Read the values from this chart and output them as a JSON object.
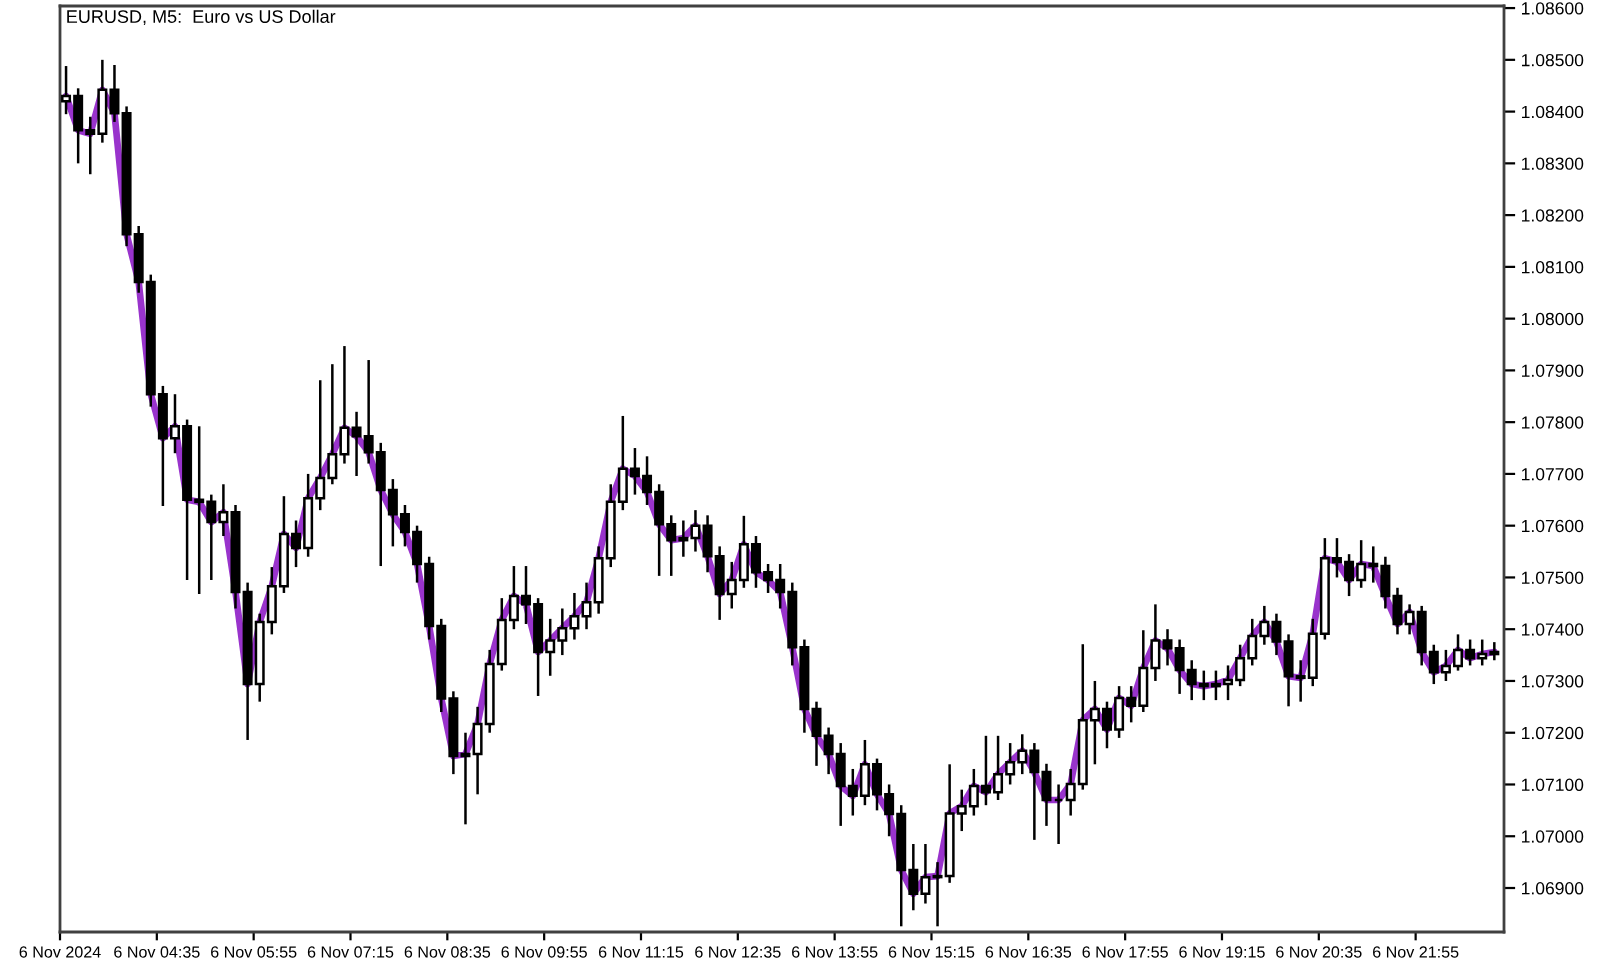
{
  "chart_data": {
    "type": "candlestick",
    "title": "EURUSD, M5:  Euro vs US Dollar",
    "x": [
      "2024-11-06T03:20",
      "2024-11-06T03:30",
      "2024-11-06T03:40",
      "2024-11-06T03:50",
      "2024-11-06T04:00",
      "2024-11-06T04:10",
      "2024-11-06T04:20",
      "2024-11-06T04:30",
      "2024-11-06T04:40",
      "2024-11-06T04:50",
      "2024-11-06T05:00",
      "2024-11-06T05:10",
      "2024-11-06T05:20",
      "2024-11-06T05:30",
      "2024-11-06T05:40",
      "2024-11-06T05:50",
      "2024-11-06T06:00",
      "2024-11-06T06:10",
      "2024-11-06T06:20",
      "2024-11-06T06:30",
      "2024-11-06T06:40",
      "2024-11-06T06:50",
      "2024-11-06T07:00",
      "2024-11-06T07:10",
      "2024-11-06T07:20",
      "2024-11-06T07:30",
      "2024-11-06T07:40",
      "2024-11-06T07:50",
      "2024-11-06T08:00",
      "2024-11-06T08:10",
      "2024-11-06T08:20",
      "2024-11-06T08:30",
      "2024-11-06T08:40",
      "2024-11-06T08:50",
      "2024-11-06T09:00",
      "2024-11-06T09:10",
      "2024-11-06T09:20",
      "2024-11-06T09:30",
      "2024-11-06T09:40",
      "2024-11-06T09:50",
      "2024-11-06T10:00",
      "2024-11-06T10:10",
      "2024-11-06T10:20",
      "2024-11-06T10:30",
      "2024-11-06T10:40",
      "2024-11-06T10:50",
      "2024-11-06T11:00",
      "2024-11-06T11:10",
      "2024-11-06T11:20",
      "2024-11-06T11:30",
      "2024-11-06T11:40",
      "2024-11-06T11:50",
      "2024-11-06T12:00",
      "2024-11-06T12:10",
      "2024-11-06T12:20",
      "2024-11-06T12:30",
      "2024-11-06T12:40",
      "2024-11-06T12:50",
      "2024-11-06T13:00",
      "2024-11-06T13:10",
      "2024-11-06T13:20",
      "2024-11-06T13:30",
      "2024-11-06T13:40",
      "2024-11-06T13:50",
      "2024-11-06T14:00",
      "2024-11-06T14:10",
      "2024-11-06T14:20",
      "2024-11-06T14:30",
      "2024-11-06T14:40",
      "2024-11-06T14:50",
      "2024-11-06T15:00",
      "2024-11-06T15:10",
      "2024-11-06T15:20",
      "2024-11-06T15:30",
      "2024-11-06T15:40",
      "2024-11-06T15:50",
      "2024-11-06T16:00",
      "2024-11-06T16:10",
      "2024-11-06T16:20",
      "2024-11-06T16:30",
      "2024-11-06T16:40",
      "2024-11-06T16:50",
      "2024-11-06T17:00",
      "2024-11-06T17:10",
      "2024-11-06T17:20",
      "2024-11-06T17:30",
      "2024-11-06T17:40",
      "2024-11-06T17:50",
      "2024-11-06T18:00",
      "2024-11-06T18:10",
      "2024-11-06T18:20",
      "2024-11-06T18:30",
      "2024-11-06T18:40",
      "2024-11-06T18:50",
      "2024-11-06T19:00",
      "2024-11-06T19:10",
      "2024-11-06T19:20",
      "2024-11-06T19:30",
      "2024-11-06T19:40",
      "2024-11-06T19:50",
      "2024-11-06T20:00",
      "2024-11-06T20:10",
      "2024-11-06T20:20",
      "2024-11-06T20:30",
      "2024-11-06T20:40",
      "2024-11-06T20:50",
      "2024-11-06T21:00",
      "2024-11-06T21:10",
      "2024-11-06T21:20",
      "2024-11-06T21:30",
      "2024-11-06T21:40",
      "2024-11-06T21:50",
      "2024-11-06T22:00",
      "2024-11-06T22:10",
      "2024-11-06T22:20",
      "2024-11-06T22:30",
      "2024-11-06T22:40",
      "2024-11-06T22:50",
      "2024-11-06T23:00"
    ],
    "ohlc": [
      [
        1.0842,
        1.08488,
        1.08395,
        1.0843
      ],
      [
        1.0843,
        1.08445,
        1.083,
        1.08364
      ],
      [
        1.08364,
        1.0839,
        1.08279,
        1.08357
      ],
      [
        1.08357,
        1.085,
        1.0834,
        1.08442
      ],
      [
        1.08442,
        1.0849,
        1.0838,
        1.08397
      ],
      [
        1.08397,
        1.0841,
        1.0814,
        1.08163
      ],
      [
        1.08163,
        1.08179,
        1.0805,
        1.08071
      ],
      [
        1.08071,
        1.08085,
        1.0783,
        1.07854
      ],
      [
        1.07854,
        1.0787,
        1.07638,
        1.07769
      ],
      [
        1.07769,
        1.07854,
        1.0774,
        1.07792
      ],
      [
        1.07792,
        1.07805,
        1.07495,
        1.0765
      ],
      [
        1.0765,
        1.07792,
        1.07468,
        1.07646
      ],
      [
        1.07646,
        1.0766,
        1.07495,
        1.07607
      ],
      [
        1.07607,
        1.0768,
        1.0758,
        1.07626
      ],
      [
        1.07626,
        1.0764,
        1.0744,
        1.07472
      ],
      [
        1.07472,
        1.0749,
        1.07186,
        1.07294
      ],
      [
        1.07294,
        1.0743,
        1.0726,
        1.07414
      ],
      [
        1.07414,
        1.0752,
        1.0739,
        1.07483
      ],
      [
        1.07483,
        1.07657,
        1.0747,
        1.07584
      ],
      [
        1.07584,
        1.0761,
        1.0752,
        1.07557
      ],
      [
        1.07557,
        1.077,
        1.0754,
        1.07653
      ],
      [
        1.07653,
        1.07881,
        1.0763,
        1.07692
      ],
      [
        1.07692,
        1.07912,
        1.0768,
        1.07738
      ],
      [
        1.07738,
        1.07947,
        1.0772,
        1.07789
      ],
      [
        1.07789,
        1.0782,
        1.07696,
        1.07773
      ],
      [
        1.07773,
        1.0792,
        1.0772,
        1.07742
      ],
      [
        1.07742,
        1.0776,
        1.07522,
        1.07669
      ],
      [
        1.07669,
        1.0769,
        1.0756,
        1.07622
      ],
      [
        1.07622,
        1.0764,
        1.0756,
        1.07588
      ],
      [
        1.07588,
        1.076,
        1.0749,
        1.07526
      ],
      [
        1.07526,
        1.0754,
        1.0738,
        1.07406
      ],
      [
        1.07406,
        1.0742,
        1.0724,
        1.07266
      ],
      [
        1.07266,
        1.0728,
        1.0712,
        1.07155
      ],
      [
        1.07155,
        1.072,
        1.07023,
        1.07159
      ],
      [
        1.07159,
        1.0725,
        1.07081,
        1.07217
      ],
      [
        1.07217,
        1.0736,
        1.072,
        1.07333
      ],
      [
        1.07333,
        1.0746,
        1.0732,
        1.07418
      ],
      [
        1.07418,
        1.07522,
        1.074,
        1.07464
      ],
      [
        1.07464,
        1.07522,
        1.0741,
        1.07448
      ],
      [
        1.07448,
        1.0746,
        1.07271,
        1.07356
      ],
      [
        1.07356,
        1.0742,
        1.0731,
        1.07378
      ],
      [
        1.07378,
        1.0744,
        1.0735,
        1.07402
      ],
      [
        1.07402,
        1.0747,
        1.0738,
        1.07425
      ],
      [
        1.07425,
        1.0749,
        1.074,
        1.07452
      ],
      [
        1.07452,
        1.0756,
        1.0743,
        1.07537
      ],
      [
        1.07537,
        1.0768,
        1.0752,
        1.07646
      ],
      [
        1.07646,
        1.07812,
        1.0763,
        1.0771
      ],
      [
        1.0771,
        1.0775,
        1.0766,
        1.07696
      ],
      [
        1.07696,
        1.07734,
        1.0764,
        1.07665
      ],
      [
        1.07665,
        1.0768,
        1.07503,
        1.07603
      ],
      [
        1.07603,
        1.0762,
        1.07503,
        1.07572
      ],
      [
        1.07572,
        1.0761,
        1.0754,
        1.07576
      ],
      [
        1.07576,
        1.0763,
        1.0755,
        1.076
      ],
      [
        1.076,
        1.0762,
        1.0751,
        1.07541
      ],
      [
        1.07541,
        1.0756,
        1.07418,
        1.07468
      ],
      [
        1.07468,
        1.0753,
        1.0744,
        1.07495
      ],
      [
        1.07495,
        1.07619,
        1.0748,
        1.07564
      ],
      [
        1.07564,
        1.0758,
        1.0748,
        1.0751
      ],
      [
        1.0751,
        1.07526,
        1.0747,
        1.07495
      ],
      [
        1.07495,
        1.07526,
        1.0744,
        1.07472
      ],
      [
        1.07472,
        1.0749,
        1.0733,
        1.07365
      ],
      [
        1.07365,
        1.0738,
        1.072,
        1.07246
      ],
      [
        1.07246,
        1.0726,
        1.07136,
        1.07194
      ],
      [
        1.07194,
        1.0721,
        1.0712,
        1.07159
      ],
      [
        1.07159,
        1.0718,
        1.0702,
        1.07097
      ],
      [
        1.07097,
        1.0713,
        1.0704,
        1.07078
      ],
      [
        1.07078,
        1.07186,
        1.0706,
        1.07139
      ],
      [
        1.07139,
        1.0715,
        1.0705,
        1.07081
      ],
      [
        1.07081,
        1.071,
        1.07,
        1.07043
      ],
      [
        1.07043,
        1.0706,
        1.06826,
        1.06935
      ],
      [
        1.06935,
        1.06985,
        1.06857,
        1.06889
      ],
      [
        1.06889,
        1.06985,
        1.0687,
        1.06921
      ],
      [
        1.06921,
        1.0695,
        1.06826,
        1.06923
      ],
      [
        1.06923,
        1.07139,
        1.0691,
        1.07044
      ],
      [
        1.07044,
        1.0709,
        1.0701,
        1.07058
      ],
      [
        1.07058,
        1.0713,
        1.0704,
        1.07097
      ],
      [
        1.07097,
        1.07194,
        1.0706,
        1.07085
      ],
      [
        1.07085,
        1.07194,
        1.0707,
        1.0712
      ],
      [
        1.0712,
        1.0718,
        1.071,
        1.07143
      ],
      [
        1.07143,
        1.07197,
        1.0712,
        1.07165
      ],
      [
        1.07165,
        1.0718,
        1.06993,
        1.07124
      ],
      [
        1.07124,
        1.0714,
        1.0702,
        1.0707
      ],
      [
        1.0707,
        1.071,
        1.06985,
        1.0707
      ],
      [
        1.0707,
        1.0713,
        1.0704,
        1.07101
      ],
      [
        1.07101,
        1.07371,
        1.0709,
        1.07224
      ],
      [
        1.07224,
        1.073,
        1.07139,
        1.07246
      ],
      [
        1.07246,
        1.0726,
        1.0717,
        1.07206
      ],
      [
        1.07206,
        1.0729,
        1.0719,
        1.07267
      ],
      [
        1.07267,
        1.0729,
        1.0722,
        1.07252
      ],
      [
        1.07252,
        1.07398,
        1.0724,
        1.07325
      ],
      [
        1.07325,
        1.07448,
        1.073,
        1.07378
      ],
      [
        1.07378,
        1.074,
        1.0733,
        1.07363
      ],
      [
        1.07363,
        1.0738,
        1.07275,
        1.07321
      ],
      [
        1.07321,
        1.0734,
        1.07263,
        1.07294
      ],
      [
        1.07294,
        1.0732,
        1.07263,
        1.0729
      ],
      [
        1.0729,
        1.0732,
        1.07263,
        1.07294
      ],
      [
        1.07294,
        1.0733,
        1.07263,
        1.07302
      ],
      [
        1.07302,
        1.0737,
        1.0729,
        1.07344
      ],
      [
        1.07344,
        1.0742,
        1.0733,
        1.07387
      ],
      [
        1.07387,
        1.07445,
        1.0737,
        1.07414
      ],
      [
        1.07414,
        1.0743,
        1.0735,
        1.07376
      ],
      [
        1.07376,
        1.0739,
        1.07251,
        1.07309
      ],
      [
        1.07309,
        1.0734,
        1.0726,
        1.07306
      ],
      [
        1.07306,
        1.0742,
        1.0729,
        1.07391
      ],
      [
        1.07391,
        1.07576,
        1.0738,
        1.07537
      ],
      [
        1.07537,
        1.07576,
        1.075,
        1.0753
      ],
      [
        1.0753,
        1.07545,
        1.07464,
        1.07495
      ],
      [
        1.07495,
        1.07572,
        1.0748,
        1.07526
      ],
      [
        1.07526,
        1.0756,
        1.0749,
        1.07522
      ],
      [
        1.07522,
        1.0754,
        1.0744,
        1.07464
      ],
      [
        1.07464,
        1.0748,
        1.0739,
        1.0741
      ],
      [
        1.0741,
        1.07448,
        1.0739,
        1.07433
      ],
      [
        1.07433,
        1.07445,
        1.0733,
        1.07356
      ],
      [
        1.07356,
        1.0737,
        1.07294,
        1.07317
      ],
      [
        1.07317,
        1.0736,
        1.073,
        1.07329
      ],
      [
        1.07329,
        1.0739,
        1.0732,
        1.0736
      ],
      [
        1.0736,
        1.0738,
        1.0733,
        1.07344
      ],
      [
        1.07344,
        1.0738,
        1.0733,
        1.07352
      ],
      [
        1.07352,
        1.07375,
        1.0734,
        1.07356
      ]
    ],
    "series": [
      {
        "type": "line",
        "color": "#9933cc",
        "values": [
          1.0843,
          1.08364,
          1.08357,
          1.08442,
          1.08397,
          1.08163,
          1.08071,
          1.07854,
          1.07769,
          1.07792,
          1.0765,
          1.07646,
          1.07607,
          1.07626,
          1.07472,
          1.07294,
          1.07414,
          1.07483,
          1.07584,
          1.07557,
          1.07653,
          1.07692,
          1.07738,
          1.07789,
          1.07773,
          1.07742,
          1.07669,
          1.07622,
          1.07588,
          1.07526,
          1.07406,
          1.07266,
          1.07155,
          1.07159,
          1.07217,
          1.07333,
          1.07418,
          1.07464,
          1.07448,
          1.07356,
          1.07378,
          1.07402,
          1.07425,
          1.07452,
          1.07537,
          1.07646,
          1.0771,
          1.07696,
          1.07665,
          1.07603,
          1.07572,
          1.07576,
          1.076,
          1.07541,
          1.07468,
          1.07495,
          1.07564,
          1.0751,
          1.07495,
          1.07472,
          1.07365,
          1.07246,
          1.07194,
          1.07159,
          1.07097,
          1.07078,
          1.07139,
          1.07081,
          1.07043,
          1.06935,
          1.06889,
          1.06921,
          1.06923,
          1.07044,
          1.07058,
          1.07097,
          1.07085,
          1.0712,
          1.07143,
          1.07165,
          1.07124,
          1.0707,
          1.0707,
          1.07101,
          1.07224,
          1.07246,
          1.07206,
          1.07267,
          1.07252,
          1.07325,
          1.07378,
          1.07363,
          1.07321,
          1.07294,
          1.0729,
          1.07294,
          1.07302,
          1.07344,
          1.07387,
          1.07414,
          1.07376,
          1.07309,
          1.07306,
          1.07391,
          1.07537,
          1.0753,
          1.07495,
          1.07526,
          1.07522,
          1.07464,
          1.0741,
          1.07433,
          1.07356,
          1.07317,
          1.07329,
          1.0736,
          1.07344,
          1.07352,
          1.07356
        ]
      }
    ],
    "xlim": [
      "2024-11-06T03:15",
      "2024-11-06T23:08"
    ],
    "xticks": [
      {
        "value": "2024-11-06T03:15",
        "label": "6 Nov 2024"
      },
      {
        "value": "2024-11-06T04:35",
        "label": "6 Nov 04:35"
      },
      {
        "value": "2024-11-06T05:55",
        "label": "6 Nov 05:55"
      },
      {
        "value": "2024-11-06T07:15",
        "label": "6 Nov 07:15"
      },
      {
        "value": "2024-11-06T08:35",
        "label": "6 Nov 08:35"
      },
      {
        "value": "2024-11-06T09:55",
        "label": "6 Nov 09:55"
      },
      {
        "value": "2024-11-06T11:15",
        "label": "6 Nov 11:15"
      },
      {
        "value": "2024-11-06T12:35",
        "label": "6 Nov 12:35"
      },
      {
        "value": "2024-11-06T13:55",
        "label": "6 Nov 13:55"
      },
      {
        "value": "2024-11-06T15:15",
        "label": "6 Nov 15:15"
      },
      {
        "value": "2024-11-06T16:35",
        "label": "6 Nov 16:35"
      },
      {
        "value": "2024-11-06T17:55",
        "label": "6 Nov 17:55"
      },
      {
        "value": "2024-11-06T19:15",
        "label": "6 Nov 19:15"
      },
      {
        "value": "2024-11-06T20:35",
        "label": "6 Nov 20:35"
      },
      {
        "value": "2024-11-06T21:55",
        "label": "6 Nov 21:55"
      }
    ],
    "ylim": [
      1.06815,
      1.08604
    ],
    "yticks": [
      {
        "value": 1.069,
        "label": "1.06900"
      },
      {
        "value": 1.07,
        "label": "1.07000"
      },
      {
        "value": 1.071,
        "label": "1.07100"
      },
      {
        "value": 1.072,
        "label": "1.07200"
      },
      {
        "value": 1.073,
        "label": "1.07300"
      },
      {
        "value": 1.074,
        "label": "1.07400"
      },
      {
        "value": 1.075,
        "label": "1.07500"
      },
      {
        "value": 1.076,
        "label": "1.07600"
      },
      {
        "value": 1.077,
        "label": "1.07700"
      },
      {
        "value": 1.078,
        "label": "1.07800"
      },
      {
        "value": 1.079,
        "label": "1.07900"
      },
      {
        "value": 1.08,
        "label": "1.08000"
      },
      {
        "value": 1.081,
        "label": "1.08100"
      },
      {
        "value": 1.082,
        "label": "1.08200"
      },
      {
        "value": 1.083,
        "label": "1.08300"
      },
      {
        "value": 1.084,
        "label": "1.08400"
      },
      {
        "value": 1.085,
        "label": "1.08500"
      },
      {
        "value": 1.086,
        "label": "1.08600"
      }
    ]
  }
}
